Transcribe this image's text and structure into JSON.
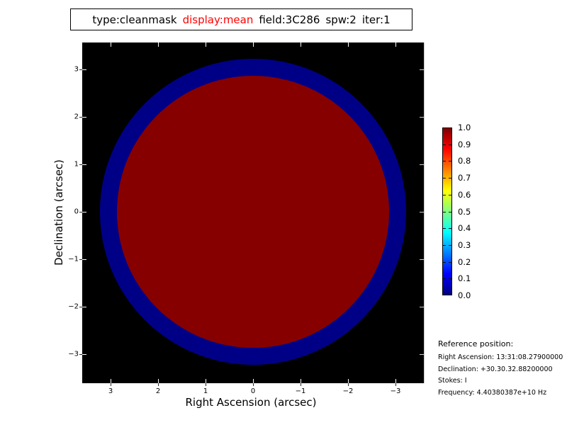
{
  "title": {
    "segments": [
      {
        "text": "type:cleanmask",
        "color": "#000000"
      },
      {
        "text": "display:mean",
        "color": "#ff0000"
      },
      {
        "text": "field:3C286",
        "color": "#000000"
      },
      {
        "text": "spw:2",
        "color": "#000000"
      },
      {
        "text": "iter:1",
        "color": "#000000"
      }
    ]
  },
  "axes": {
    "xlabel": "Right Ascension (arcsec)",
    "ylabel": "Declination (arcsec)",
    "x_tick_labels": [
      "3",
      "2",
      "1",
      "0",
      "−1",
      "−2",
      "−3"
    ],
    "y_tick_labels": [
      "3",
      "2",
      "1",
      "0",
      "−1",
      "−2",
      "−3"
    ]
  },
  "colorbar": {
    "labels": [
      "1.0",
      "0.9",
      "0.8",
      "0.7",
      "0.6",
      "0.5",
      "0.4",
      "0.3",
      "0.2",
      "0.1",
      "0.0"
    ],
    "colormap": "jet"
  },
  "reference": {
    "heading": "Reference position:",
    "lines": [
      "Right Ascension: 13:31:08.27900000",
      "Declination: +30.30.32.88200000",
      "Stokes: I",
      "Frequency: 4.40380387e+10 Hz"
    ]
  },
  "colors": {
    "background": "#000000",
    "mask_ring_blue": "#000087",
    "mask_core_red": "#870000",
    "title_highlight": "#ff0000"
  },
  "chart_data": {
    "type": "heatmap",
    "title": "type:cleanmask display:mean field:3C286 spw:2 iter:1",
    "xlabel": "Right Ascension (arcsec)",
    "ylabel": "Declination (arcsec)",
    "x_tick_values": [
      3,
      2,
      1,
      0,
      -1,
      -2,
      -3
    ],
    "y_tick_values": [
      3,
      2,
      1,
      0,
      -1,
      -2,
      -3
    ],
    "x_range_arcsec": [
      3.6,
      -3.6
    ],
    "y_range_arcsec": [
      -3.6,
      3.6
    ],
    "x_axis_reversed": true,
    "grid": false,
    "colormap": "jet",
    "value_range": [
      0.0,
      1.0
    ],
    "colorbar_ticks": [
      1.0,
      0.9,
      0.8,
      0.7,
      0.6,
      0.5,
      0.4,
      0.3,
      0.2,
      0.1,
      0.0
    ],
    "colorbar_position": "right",
    "background_value": "no-data-black",
    "regions": [
      {
        "name": "outer-mask-ring",
        "shape": "circle",
        "center_arcsec": [
          0,
          0
        ],
        "radius_arcsec": 3.25,
        "approx_mean_value": 0.05,
        "color": "#000087"
      },
      {
        "name": "inner-mask-disk",
        "shape": "circle",
        "center_arcsec": [
          0,
          0
        ],
        "radius_arcsec": 2.87,
        "approx_mean_value": 1.0,
        "color": "#870000"
      }
    ]
  }
}
